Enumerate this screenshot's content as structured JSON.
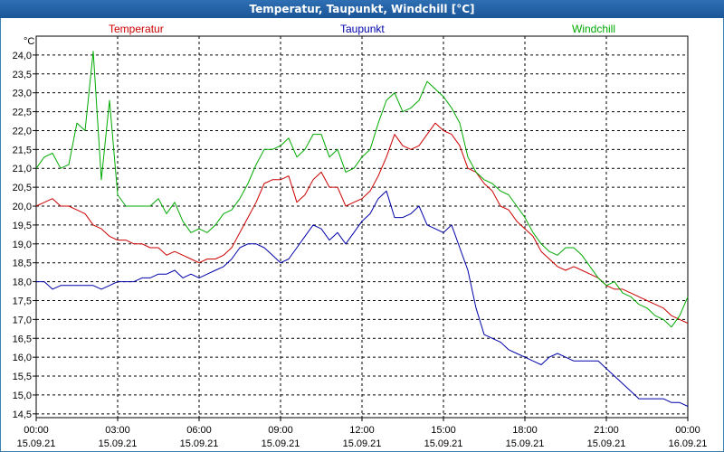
{
  "window": {
    "title": "Temperatur, Taupunkt, Windchill [°C]"
  },
  "chart_data": {
    "type": "line",
    "title": "Temperatur, Taupunkt, Windchill [°C]",
    "ylabel": "°C",
    "xlabel": "",
    "ylim": [
      14.4,
      24.5
    ],
    "xlim": [
      0,
      24
    ],
    "grid": true,
    "y_ticks": [
      "14,5",
      "15,0",
      "15,5",
      "16,0",
      "16,5",
      "17,0",
      "17,5",
      "18,0",
      "18,5",
      "19,0",
      "19,5",
      "20,0",
      "20,5",
      "21,0",
      "21,5",
      "22,0",
      "22,5",
      "23,0",
      "23,5",
      "24,0"
    ],
    "x_ticks": [
      {
        "time": "00:00",
        "date": "15.09.21"
      },
      {
        "time": "03:00",
        "date": "15.09.21"
      },
      {
        "time": "06:00",
        "date": "15.09.21"
      },
      {
        "time": "09:00",
        "date": "15.09.21"
      },
      {
        "time": "12:00",
        "date": "15.09.21"
      },
      {
        "time": "15:00",
        "date": "15.09.21"
      },
      {
        "time": "18:00",
        "date": "15.09.21"
      },
      {
        "time": "21:00",
        "date": "15.09.21"
      },
      {
        "time": "00:00",
        "date": "16.09.21"
      }
    ],
    "series": [
      {
        "name": "Temperatur",
        "color": "#cc0000",
        "x": [
          0,
          0.3,
          0.6,
          0.9,
          1.2,
          1.5,
          1.8,
          2.1,
          2.4,
          2.7,
          3.0,
          3.3,
          3.6,
          3.9,
          4.2,
          4.5,
          4.8,
          5.1,
          5.4,
          5.7,
          6.0,
          6.3,
          6.6,
          6.9,
          7.2,
          7.5,
          7.8,
          8.1,
          8.4,
          8.7,
          9.0,
          9.3,
          9.6,
          9.9,
          10.2,
          10.5,
          10.8,
          11.1,
          11.4,
          11.7,
          12.0,
          12.3,
          12.6,
          12.9,
          13.2,
          13.5,
          13.8,
          14.1,
          14.4,
          14.7,
          15.0,
          15.3,
          15.6,
          15.9,
          16.2,
          16.5,
          16.8,
          17.1,
          17.4,
          17.7,
          18.0,
          18.3,
          18.6,
          18.9,
          19.2,
          19.5,
          19.8,
          20.1,
          20.4,
          20.7,
          21.0,
          21.3,
          21.6,
          21.9,
          22.2,
          22.5,
          22.8,
          23.1,
          23.4,
          23.7,
          24.0
        ],
        "values": [
          20.0,
          20.1,
          20.2,
          20.0,
          20.0,
          19.9,
          19.8,
          19.5,
          19.4,
          19.2,
          19.1,
          19.1,
          19.0,
          19.0,
          18.9,
          18.9,
          18.7,
          18.8,
          18.7,
          18.6,
          18.5,
          18.6,
          18.6,
          18.7,
          18.9,
          19.3,
          19.7,
          20.1,
          20.6,
          20.7,
          20.7,
          20.8,
          20.1,
          20.3,
          20.7,
          20.9,
          20.5,
          20.5,
          20.0,
          20.1,
          20.2,
          20.4,
          20.8,
          21.3,
          21.9,
          21.6,
          21.5,
          21.6,
          21.9,
          22.2,
          22.0,
          21.9,
          21.6,
          21.0,
          20.9,
          20.6,
          20.4,
          20.0,
          19.9,
          19.6,
          19.4,
          19.2,
          18.8,
          18.6,
          18.4,
          18.3,
          18.4,
          18.3,
          18.2,
          18.1,
          17.9,
          17.8,
          17.8,
          17.7,
          17.6,
          17.5,
          17.4,
          17.3,
          17.1,
          17.0,
          16.9
        ]
      },
      {
        "name": "Taupunkt",
        "color": "#0000aa",
        "x": [
          0,
          0.3,
          0.6,
          0.9,
          1.2,
          1.5,
          1.8,
          2.1,
          2.4,
          2.7,
          3.0,
          3.3,
          3.6,
          3.9,
          4.2,
          4.5,
          4.8,
          5.1,
          5.4,
          5.7,
          6.0,
          6.3,
          6.6,
          6.9,
          7.2,
          7.5,
          7.8,
          8.1,
          8.4,
          8.7,
          9.0,
          9.3,
          9.6,
          9.9,
          10.2,
          10.5,
          10.8,
          11.1,
          11.4,
          11.7,
          12.0,
          12.3,
          12.6,
          12.9,
          13.2,
          13.5,
          13.8,
          14.1,
          14.4,
          14.7,
          15.0,
          15.3,
          15.6,
          15.9,
          16.2,
          16.5,
          16.8,
          17.1,
          17.4,
          17.7,
          18.0,
          18.3,
          18.6,
          18.9,
          19.2,
          19.5,
          19.8,
          20.1,
          20.4,
          20.7,
          21.0,
          21.3,
          21.6,
          21.9,
          22.2,
          22.5,
          22.8,
          23.1,
          23.4,
          23.7,
          24.0
        ],
        "values": [
          18.0,
          18.0,
          17.8,
          17.9,
          17.9,
          17.9,
          17.9,
          17.9,
          17.8,
          17.9,
          18.0,
          18.0,
          18.0,
          18.1,
          18.1,
          18.2,
          18.2,
          18.3,
          18.1,
          18.2,
          18.1,
          18.2,
          18.3,
          18.4,
          18.6,
          18.9,
          19.0,
          19.0,
          18.9,
          18.7,
          18.5,
          18.6,
          18.9,
          19.2,
          19.5,
          19.4,
          19.1,
          19.3,
          19.0,
          19.3,
          19.6,
          19.8,
          20.2,
          20.4,
          19.7,
          19.7,
          19.8,
          20.0,
          19.5,
          19.4,
          19.3,
          19.5,
          18.9,
          18.3,
          17.3,
          16.6,
          16.5,
          16.4,
          16.2,
          16.1,
          16.0,
          15.9,
          15.8,
          16.0,
          16.1,
          16.0,
          15.9,
          15.9,
          15.9,
          15.9,
          15.7,
          15.5,
          15.3,
          15.1,
          14.9,
          14.9,
          14.9,
          14.9,
          14.8,
          14.8,
          14.7
        ]
      },
      {
        "name": "Windchill",
        "color": "#00aa00",
        "x": [
          0,
          0.3,
          0.6,
          0.9,
          1.2,
          1.5,
          1.8,
          2.1,
          2.4,
          2.7,
          3.0,
          3.3,
          3.6,
          3.9,
          4.2,
          4.5,
          4.8,
          5.1,
          5.4,
          5.7,
          6.0,
          6.3,
          6.6,
          6.9,
          7.2,
          7.5,
          7.8,
          8.1,
          8.4,
          8.7,
          9.0,
          9.3,
          9.6,
          9.9,
          10.2,
          10.5,
          10.8,
          11.1,
          11.4,
          11.7,
          12.0,
          12.3,
          12.6,
          12.9,
          13.2,
          13.5,
          13.8,
          14.1,
          14.4,
          14.7,
          15.0,
          15.3,
          15.6,
          15.9,
          16.2,
          16.5,
          16.8,
          17.1,
          17.4,
          17.7,
          18.0,
          18.3,
          18.6,
          18.9,
          19.2,
          19.5,
          19.8,
          20.1,
          20.4,
          20.7,
          21.0,
          21.3,
          21.6,
          21.9,
          22.2,
          22.5,
          22.8,
          23.1,
          23.4,
          23.7,
          24.0
        ],
        "values": [
          21.0,
          21.3,
          21.4,
          21.0,
          21.1,
          22.2,
          22.0,
          24.1,
          20.7,
          22.8,
          20.3,
          20.0,
          20.0,
          20.0,
          20.0,
          20.2,
          19.8,
          20.1,
          19.6,
          19.3,
          19.4,
          19.3,
          19.5,
          19.8,
          19.9,
          20.2,
          20.6,
          21.1,
          21.5,
          21.5,
          21.6,
          21.8,
          21.3,
          21.5,
          21.9,
          21.9,
          21.3,
          21.5,
          20.9,
          21.0,
          21.3,
          21.5,
          22.2,
          22.8,
          23.0,
          22.5,
          22.6,
          22.8,
          23.3,
          23.1,
          22.9,
          22.6,
          22.2,
          21.3,
          20.9,
          20.7,
          20.6,
          20.4,
          20.3,
          20.0,
          19.7,
          19.3,
          19.0,
          18.8,
          18.7,
          18.9,
          18.9,
          18.7,
          18.4,
          18.1,
          17.9,
          18.0,
          17.7,
          17.6,
          17.4,
          17.3,
          17.1,
          17.0,
          16.8,
          17.1,
          17.6
        ]
      }
    ]
  }
}
